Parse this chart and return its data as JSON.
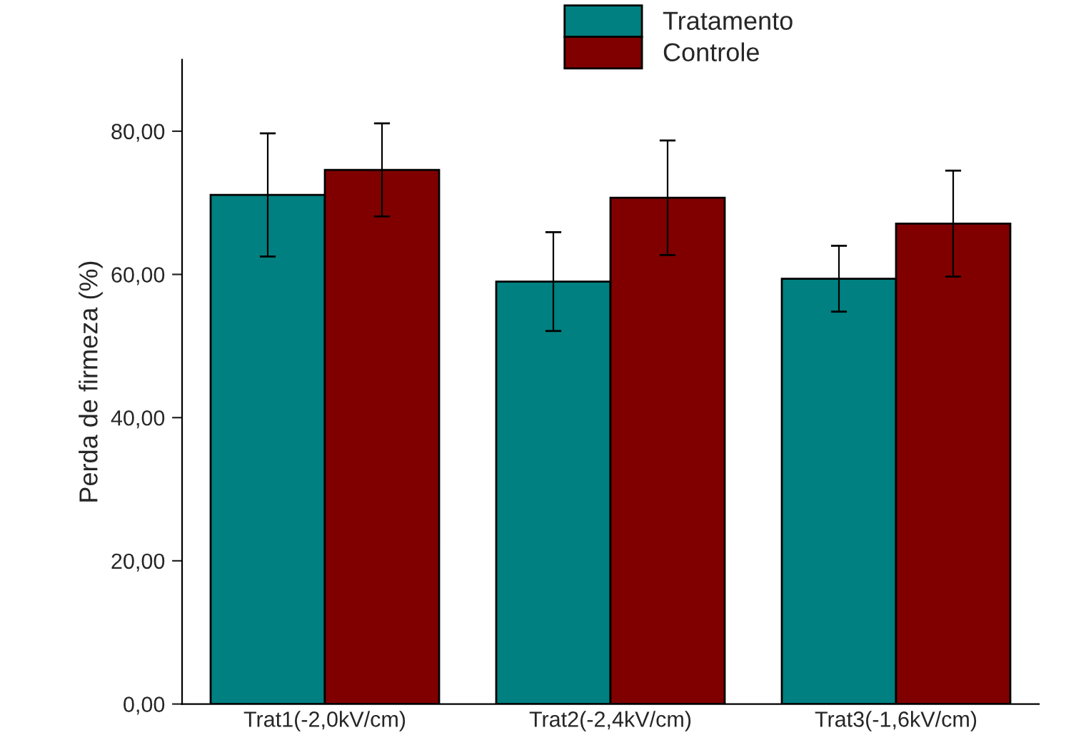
{
  "chart_data": {
    "type": "bar",
    "ylabel": "Perda de firmeza (%)",
    "categories": [
      "Trat1(-2,0kV/cm)",
      "Trat2(-2,4kV/cm)",
      "Trat3(-1,6kV/cm)"
    ],
    "series": [
      {
        "name": "Tratamento",
        "color": "#008080",
        "values": [
          71.1,
          59.0,
          59.4
        ],
        "errors": [
          8.6,
          6.9,
          4.6
        ]
      },
      {
        "name": "Controle",
        "color": "#800000",
        "values": [
          74.6,
          70.7,
          67.1
        ],
        "errors": [
          6.5,
          8.0,
          7.4
        ]
      }
    ],
    "ylim": [
      0,
      90
    ],
    "yticks": [
      {
        "value": 0,
        "label": "0,00"
      },
      {
        "value": 20,
        "label": "20,00"
      },
      {
        "value": 40,
        "label": "40,00"
      },
      {
        "value": 60,
        "label": "60,00"
      },
      {
        "value": 80,
        "label": "80,00"
      }
    ],
    "grid": false,
    "legend": "top"
  }
}
